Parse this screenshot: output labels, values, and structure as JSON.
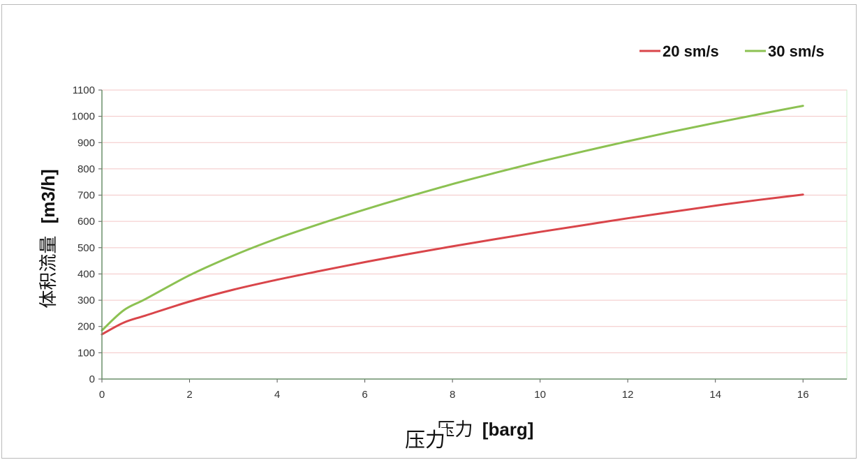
{
  "chart_data": {
    "type": "line",
    "title": "",
    "xlabel": "压力 [barg]",
    "xlabel_parts": {
      "cjk": "压力",
      "unit": "[barg]"
    },
    "ylabel": "体积流量 [m3/h]",
    "ylabel_parts": {
      "cjk": "体积流量",
      "unit": "[m3/h]"
    },
    "xlim": [
      0,
      17
    ],
    "ylim": [
      0,
      1100
    ],
    "x_ticks": [
      0,
      2,
      4,
      6,
      8,
      10,
      12,
      14,
      16
    ],
    "y_ticks": [
      0,
      100,
      200,
      300,
      400,
      500,
      600,
      700,
      800,
      900,
      1000,
      1100
    ],
    "grid": "horizontal",
    "legend_position": "top-right",
    "x": [
      0,
      0.5,
      1,
      2,
      3,
      4,
      5,
      6,
      7,
      8,
      9,
      10,
      11,
      12,
      13,
      14,
      15,
      16
    ],
    "series": [
      {
        "name": "20 sm/s",
        "color": "#d9454a",
        "values": [
          170,
          215,
          242,
          295,
          340,
          378,
          412,
          445,
          476,
          505,
          533,
          560,
          586,
          612,
          636,
          660,
          682,
          702
        ]
      },
      {
        "name": "30 sm/s",
        "color": "#8cc152",
        "values": [
          185,
          262,
          305,
          395,
          470,
          535,
          592,
          645,
          695,
          742,
          786,
          828,
          867,
          905,
          941,
          975,
          1008,
          1040
        ]
      }
    ]
  },
  "overlay_label": "压力"
}
